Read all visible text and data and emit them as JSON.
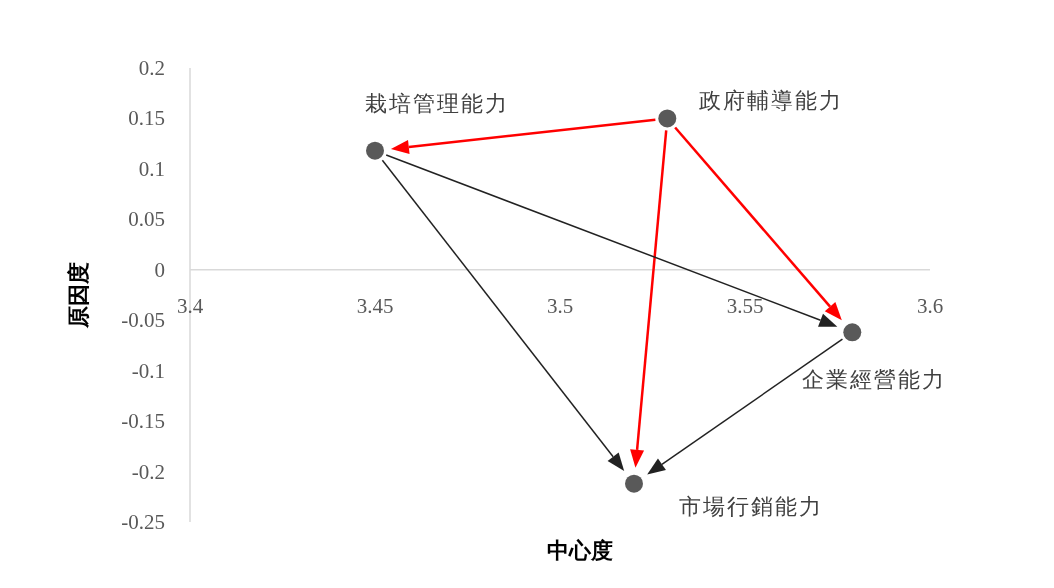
{
  "chart_data": {
    "type": "scatter",
    "xlabel": "中心度",
    "ylabel": "原因度",
    "x": [
      3.45,
      3.529,
      3.579,
      3.52
    ],
    "values": [
      0.118,
      0.15,
      -0.062,
      -0.212
    ],
    "color": "#595959",
    "marker": "circle",
    "xlim": [
      3.4,
      3.6
    ],
    "xticks": [
      3.4,
      3.45,
      3.5,
      3.55,
      3.6
    ],
    "ylim": [
      -0.25,
      0.2
    ],
    "yticks": [
      0.2,
      0.15,
      0.1,
      0.05,
      0,
      -0.05,
      -0.1,
      -0.15,
      -0.2,
      -0.25
    ],
    "annotations": [
      {
        "text": "栽培管理能力",
        "x": 3.45,
        "y": 0.118
      },
      {
        "text": "政府輔導能力",
        "x": 3.529,
        "y": 0.15
      },
      {
        "text": "企業經營能力",
        "x": 3.579,
        "y": -0.062
      },
      {
        "text": "市場行銷能力",
        "x": 3.52,
        "y": -0.212
      }
    ]
  }
}
